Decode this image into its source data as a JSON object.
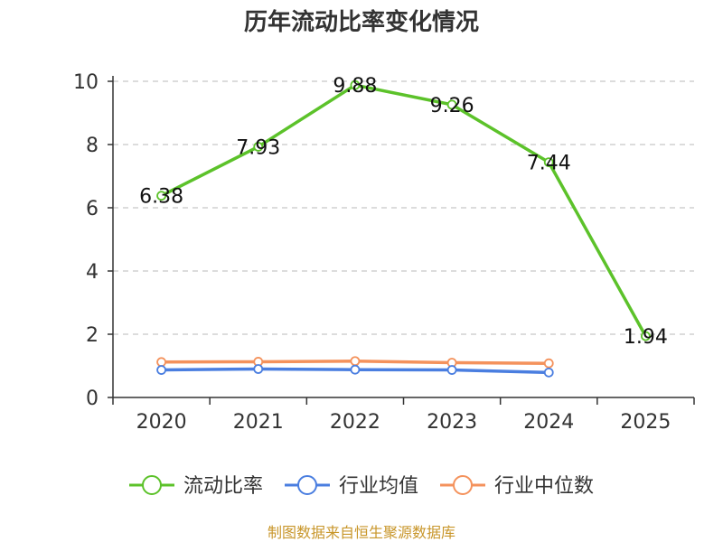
{
  "chart_data": {
    "type": "line",
    "title": "历年流动比率变化情况",
    "categories": [
      "2020",
      "2021",
      "2022",
      "2023",
      "2024",
      "2025"
    ],
    "ylim": [
      0,
      10
    ],
    "yticks": [
      0,
      2,
      4,
      6,
      8,
      10
    ],
    "grid": true,
    "legend_position": "bottom",
    "series": [
      {
        "name": "流动比率",
        "color": "#5cc22a",
        "values": [
          6.38,
          7.93,
          9.88,
          9.26,
          7.44,
          1.94
        ],
        "data_labels": [
          "6.38",
          "7.93",
          "9.88",
          "9.26",
          "7.44",
          "1.94"
        ]
      },
      {
        "name": "行业均值",
        "color": "#4a7ee0",
        "values": [
          0.87,
          0.9,
          0.88,
          0.87,
          0.79,
          null
        ]
      },
      {
        "name": "行业中位数",
        "color": "#f4925c",
        "values": [
          1.12,
          1.13,
          1.15,
          1.1,
          1.08,
          null
        ]
      }
    ]
  },
  "footer": {
    "source": "制图数据来自恒生聚源数据库"
  }
}
